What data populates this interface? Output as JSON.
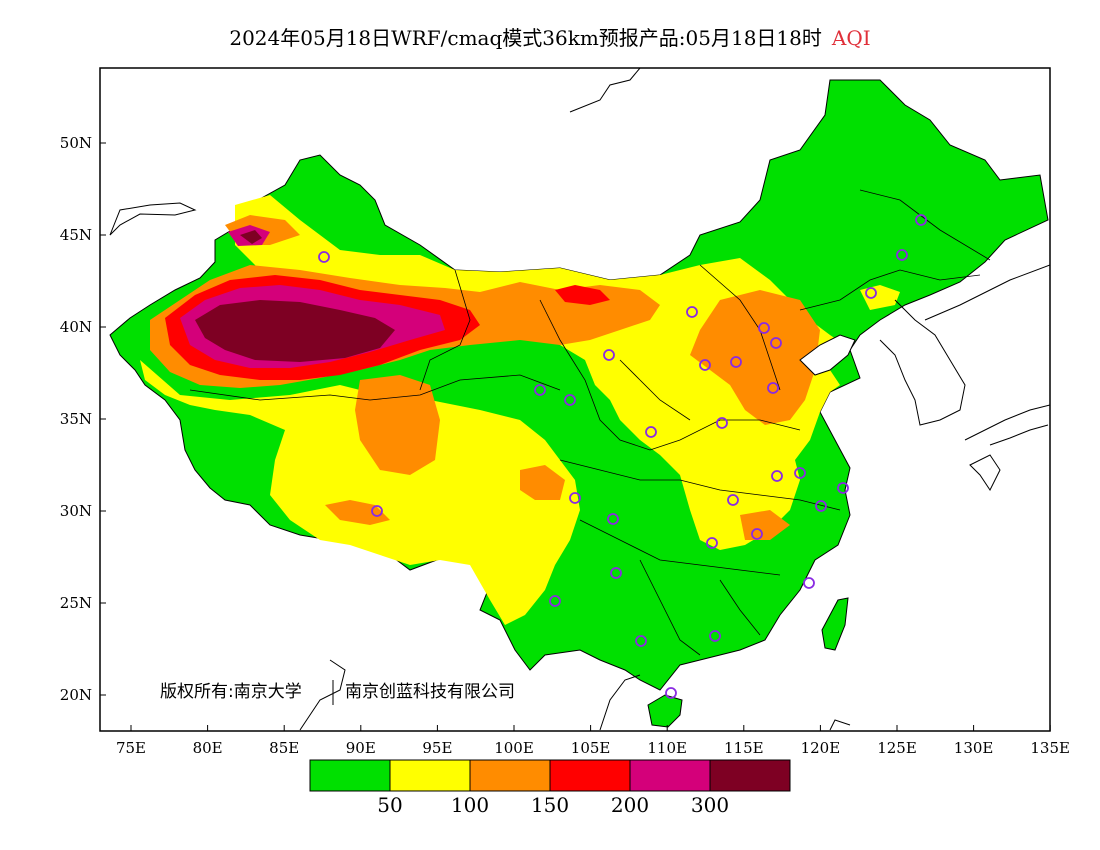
{
  "title": {
    "main": "2024年05月18日WRF/cmaq模式36km预报产品:05月18日18时",
    "variable": "AQI",
    "variable_color": "#e0303a"
  },
  "axes": {
    "y_ticks": [
      "50N",
      "45N",
      "40N",
      "35N",
      "30N",
      "25N",
      "20N"
    ],
    "x_ticks": [
      "75E",
      "80E",
      "85E",
      "90E",
      "95E",
      "100E",
      "105E",
      "110E",
      "115E",
      "120E",
      "125E",
      "130E",
      "135E"
    ]
  },
  "copyright": {
    "left": "版权所有:南京大学",
    "right": "南京创蓝科技有限公司"
  },
  "legend": {
    "colors": [
      "#00e000",
      "#ffff00",
      "#ff8c00",
      "#ff0000",
      "#d4007a",
      "#7e0023"
    ],
    "labels": [
      "50",
      "100",
      "150",
      "200",
      "300"
    ]
  },
  "colors": {
    "station_marker": "#8a2be2"
  }
}
